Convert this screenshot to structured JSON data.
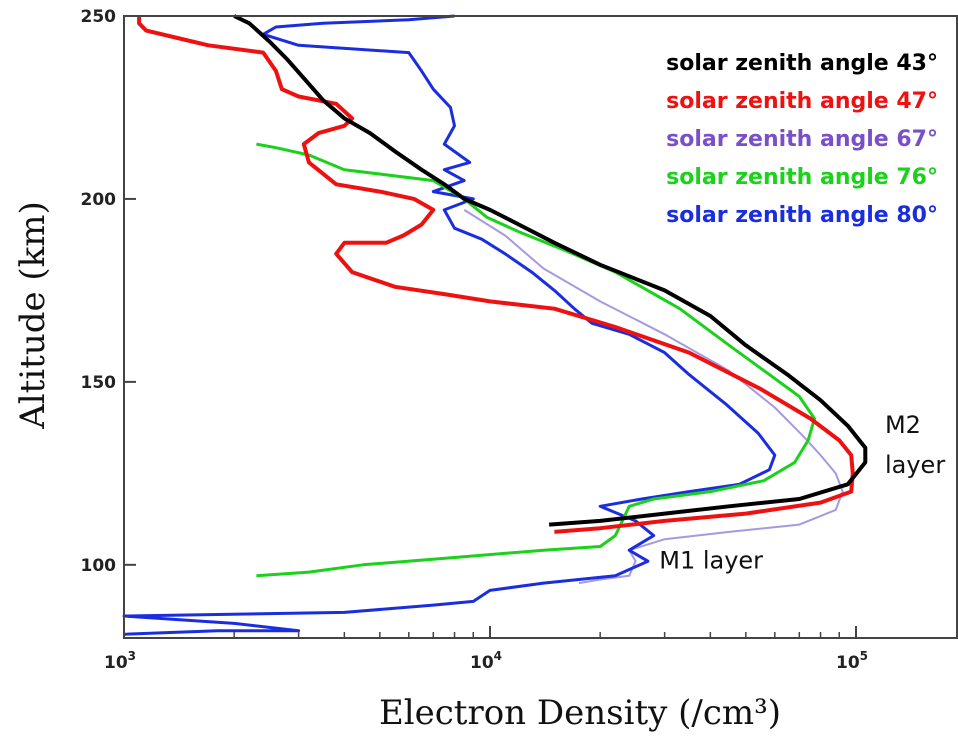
{
  "colors": {
    "sza43": "#000000",
    "sza47": "#ee1111",
    "sza67": "#a898e0",
    "sza76": "#1bd11b",
    "sza80": "#1a2ee0",
    "legend67": "#7a50c8"
  },
  "chart_data": {
    "type": "line",
    "xlabel": "Electron Density (/cm³)",
    "ylabel": "Altitude (km)",
    "xscale": "log",
    "xlim": [
      1000,
      200000
    ],
    "ylim": [
      80,
      250
    ],
    "grid": false,
    "legend_placement": "top-right",
    "yticks": [
      {
        "value": 100,
        "label": "100"
      },
      {
        "value": 150,
        "label": "150"
      },
      {
        "value": 200,
        "label": "200"
      },
      {
        "value": 250,
        "label": "250"
      }
    ],
    "xticks": [
      {
        "value": 1000,
        "base": "10",
        "exp": "3"
      },
      {
        "value": 10000,
        "base": "10",
        "exp": "4"
      },
      {
        "value": 100000,
        "base": "10",
        "exp": "5"
      }
    ],
    "annotations": [
      {
        "lines": [
          "M2",
          "layer"
        ],
        "x": 120000,
        "y": 136
      },
      {
        "lines": [
          "M1 layer"
        ],
        "x": 29000,
        "y": 99
      }
    ],
    "series": [
      {
        "name": "solar zenith angle 43°",
        "color_key": "sza43",
        "points": [
          [
            14500,
            111
          ],
          [
            20000,
            112
          ],
          [
            30000,
            114
          ],
          [
            45000,
            116
          ],
          [
            70000,
            118
          ],
          [
            95000,
            122
          ],
          [
            106000,
            128
          ],
          [
            106000,
            132
          ],
          [
            95000,
            138
          ],
          [
            80000,
            145
          ],
          [
            65000,
            152
          ],
          [
            50000,
            160
          ],
          [
            40000,
            168
          ],
          [
            30000,
            175
          ],
          [
            20000,
            182
          ],
          [
            15000,
            188
          ],
          [
            12000,
            193
          ],
          [
            10000,
            197
          ],
          [
            8500,
            200
          ],
          [
            7500,
            204
          ],
          [
            6500,
            208
          ],
          [
            5500,
            213
          ],
          [
            4700,
            218
          ],
          [
            4000,
            222
          ],
          [
            3500,
            227
          ],
          [
            3100,
            233
          ],
          [
            2800,
            238
          ],
          [
            2500,
            243
          ],
          [
            2200,
            248
          ],
          [
            2000,
            250
          ]
        ]
      },
      {
        "name": "solar zenith angle 47°",
        "color_key": "sza47",
        "points": [
          [
            15000,
            109
          ],
          [
            20000,
            110
          ],
          [
            30000,
            112
          ],
          [
            50000,
            114
          ],
          [
            80000,
            117
          ],
          [
            97000,
            120
          ],
          [
            98000,
            125
          ],
          [
            97000,
            130
          ],
          [
            90000,
            134
          ],
          [
            75000,
            140
          ],
          [
            55000,
            148
          ],
          [
            35000,
            158
          ],
          [
            22000,
            165
          ],
          [
            15000,
            170
          ],
          [
            10000,
            172
          ],
          [
            7500,
            174
          ],
          [
            5500,
            176
          ],
          [
            4200,
            180
          ],
          [
            3800,
            185
          ],
          [
            4000,
            188
          ],
          [
            5200,
            188
          ],
          [
            5800,
            190
          ],
          [
            6500,
            193
          ],
          [
            7000,
            197
          ],
          [
            6200,
            200
          ],
          [
            5000,
            202
          ],
          [
            3800,
            204
          ],
          [
            3200,
            210
          ],
          [
            3100,
            215
          ],
          [
            3400,
            218
          ],
          [
            4000,
            220
          ],
          [
            4200,
            222
          ],
          [
            3800,
            226
          ],
          [
            3000,
            228
          ],
          [
            2700,
            230
          ],
          [
            2600,
            235
          ],
          [
            2400,
            240
          ],
          [
            1700,
            242
          ],
          [
            1400,
            244
          ],
          [
            1150,
            246
          ],
          [
            1100,
            248
          ],
          [
            1100,
            250
          ]
        ]
      },
      {
        "name": "solar zenith angle 67°",
        "color_key": "sza67",
        "points": [
          [
            17500,
            95
          ],
          [
            20000,
            96
          ],
          [
            24000,
            97
          ],
          [
            25000,
            101
          ],
          [
            24000,
            104
          ],
          [
            30000,
            107
          ],
          [
            45000,
            109
          ],
          [
            70000,
            111
          ],
          [
            88000,
            115
          ],
          [
            92000,
            120
          ],
          [
            88000,
            125
          ],
          [
            80000,
            130
          ],
          [
            72000,
            135
          ],
          [
            60000,
            143
          ],
          [
            45000,
            153
          ],
          [
            30000,
            163
          ],
          [
            20000,
            172
          ],
          [
            14000,
            181
          ],
          [
            11000,
            190
          ],
          [
            8500,
            197
          ]
        ]
      },
      {
        "name": "solar zenith angle 76°",
        "color_key": "sza76",
        "points": [
          [
            2300,
            97
          ],
          [
            3200,
            98
          ],
          [
            4500,
            100
          ],
          [
            8000,
            102
          ],
          [
            14000,
            104
          ],
          [
            20000,
            105
          ],
          [
            22000,
            108
          ],
          [
            23000,
            112
          ],
          [
            24000,
            116
          ],
          [
            28000,
            118
          ],
          [
            40000,
            120
          ],
          [
            56000,
            123
          ],
          [
            68000,
            128
          ],
          [
            74000,
            134
          ],
          [
            77000,
            140
          ],
          [
            70000,
            146
          ],
          [
            58000,
            152
          ],
          [
            45000,
            160
          ],
          [
            33000,
            170
          ],
          [
            22000,
            180
          ],
          [
            16000,
            186
          ],
          [
            12000,
            191
          ],
          [
            9800,
            195
          ],
          [
            8500,
            200
          ],
          [
            7000,
            205
          ],
          [
            4000,
            208
          ],
          [
            3200,
            212
          ],
          [
            2600,
            214
          ],
          [
            2300,
            215
          ]
        ]
      },
      {
        "name": "solar zenith angle 80°",
        "color_key": "sza80",
        "points": [
          [
            1000,
            81
          ],
          [
            1800,
            82
          ],
          [
            3000,
            82
          ],
          [
            2000,
            84
          ],
          [
            1000,
            86
          ],
          [
            4000,
            87
          ],
          [
            7000,
            89
          ],
          [
            9000,
            90
          ],
          [
            10000,
            93
          ],
          [
            14000,
            95
          ],
          [
            22000,
            97
          ],
          [
            27000,
            101
          ],
          [
            24000,
            104
          ],
          [
            28000,
            108
          ],
          [
            25000,
            112
          ],
          [
            20000,
            116
          ],
          [
            26000,
            118
          ],
          [
            35000,
            120
          ],
          [
            48000,
            122
          ],
          [
            58000,
            126
          ],
          [
            60000,
            130
          ],
          [
            54000,
            136
          ],
          [
            44000,
            144
          ],
          [
            35000,
            152
          ],
          [
            30000,
            158
          ],
          [
            24000,
            163
          ],
          [
            19000,
            166
          ],
          [
            17000,
            170
          ],
          [
            15000,
            175
          ],
          [
            13000,
            180
          ],
          [
            11000,
            185
          ],
          [
            9500,
            189
          ],
          [
            8000,
            192
          ],
          [
            7500,
            197
          ],
          [
            9000,
            200
          ],
          [
            7000,
            202
          ],
          [
            8500,
            205
          ],
          [
            7500,
            208
          ],
          [
            8800,
            210
          ],
          [
            7500,
            215
          ],
          [
            8000,
            220
          ],
          [
            7800,
            225
          ],
          [
            7000,
            230
          ],
          [
            6500,
            235
          ],
          [
            6000,
            240
          ],
          [
            3000,
            242
          ],
          [
            2400,
            245
          ],
          [
            2600,
            247
          ],
          [
            3500,
            248
          ],
          [
            6000,
            249
          ],
          [
            8000,
            250
          ]
        ]
      }
    ]
  }
}
